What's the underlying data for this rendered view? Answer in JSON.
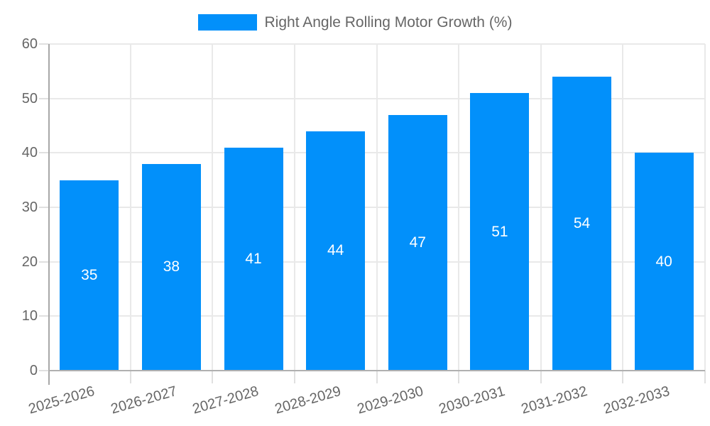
{
  "chart_data": {
    "type": "bar",
    "title": "Right Angle Rolling Motor Growth (%)",
    "legend_label": "Right Angle Rolling Motor Growth (%)",
    "legend_position": "top-center",
    "categories": [
      "2025-2026",
      "2026-2027",
      "2027-2028",
      "2028-2029",
      "2029-2030",
      "2030-2031",
      "2031-2032",
      "2032-2033"
    ],
    "values": [
      35,
      38,
      41,
      44,
      47,
      51,
      54,
      40
    ],
    "xlabel": "",
    "ylabel": "",
    "ylim": [
      0,
      60
    ],
    "yticks": [
      0,
      10,
      20,
      30,
      40,
      50,
      60
    ],
    "grid": "horizontal and vertical light gray lines",
    "bar_value_labels": "white, centered inside bars",
    "x_label_rotation_deg": -16,
    "colors": {
      "bar": "#0290fa",
      "value_label": "#ffffff",
      "axis_text": "#666666",
      "grid": "#e9e9e9",
      "axis_line": "#b0b0b0",
      "background": "#ffffff"
    }
  }
}
